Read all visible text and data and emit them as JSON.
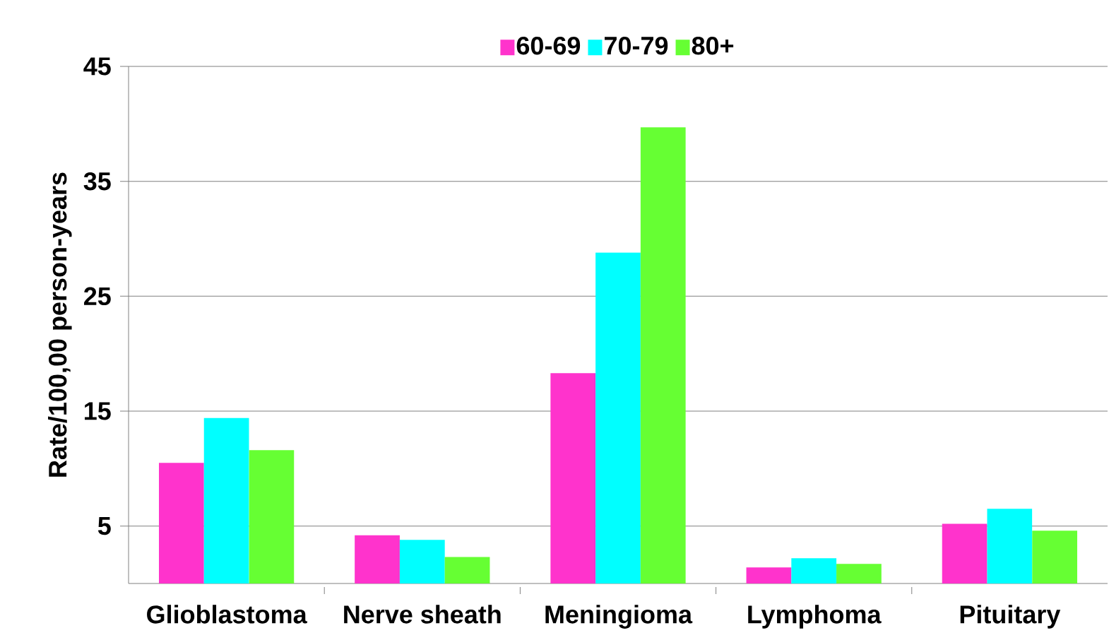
{
  "chart_data": {
    "type": "bar",
    "ylabel": "Rate/100,00 person-years",
    "categories": [
      "Glioblastoma",
      "Nerve sheath",
      "Meningioma",
      "Lymphoma",
      "Pituitary"
    ],
    "series": [
      {
        "name": "60-69",
        "color": "#ff33cc",
        "values": [
          10.5,
          4.2,
          18.3,
          1.4,
          5.2
        ]
      },
      {
        "name": "70-79",
        "color": "#00ffff",
        "values": [
          14.4,
          3.8,
          28.8,
          2.2,
          6.5
        ]
      },
      {
        "name": "80+",
        "color": "#66ff33",
        "values": [
          11.6,
          2.3,
          39.7,
          1.7,
          4.6
        ]
      }
    ],
    "ylim": [
      0,
      45
    ],
    "yticks": [
      5,
      15,
      25,
      35,
      45
    ],
    "grid": "y",
    "legend": "top"
  }
}
